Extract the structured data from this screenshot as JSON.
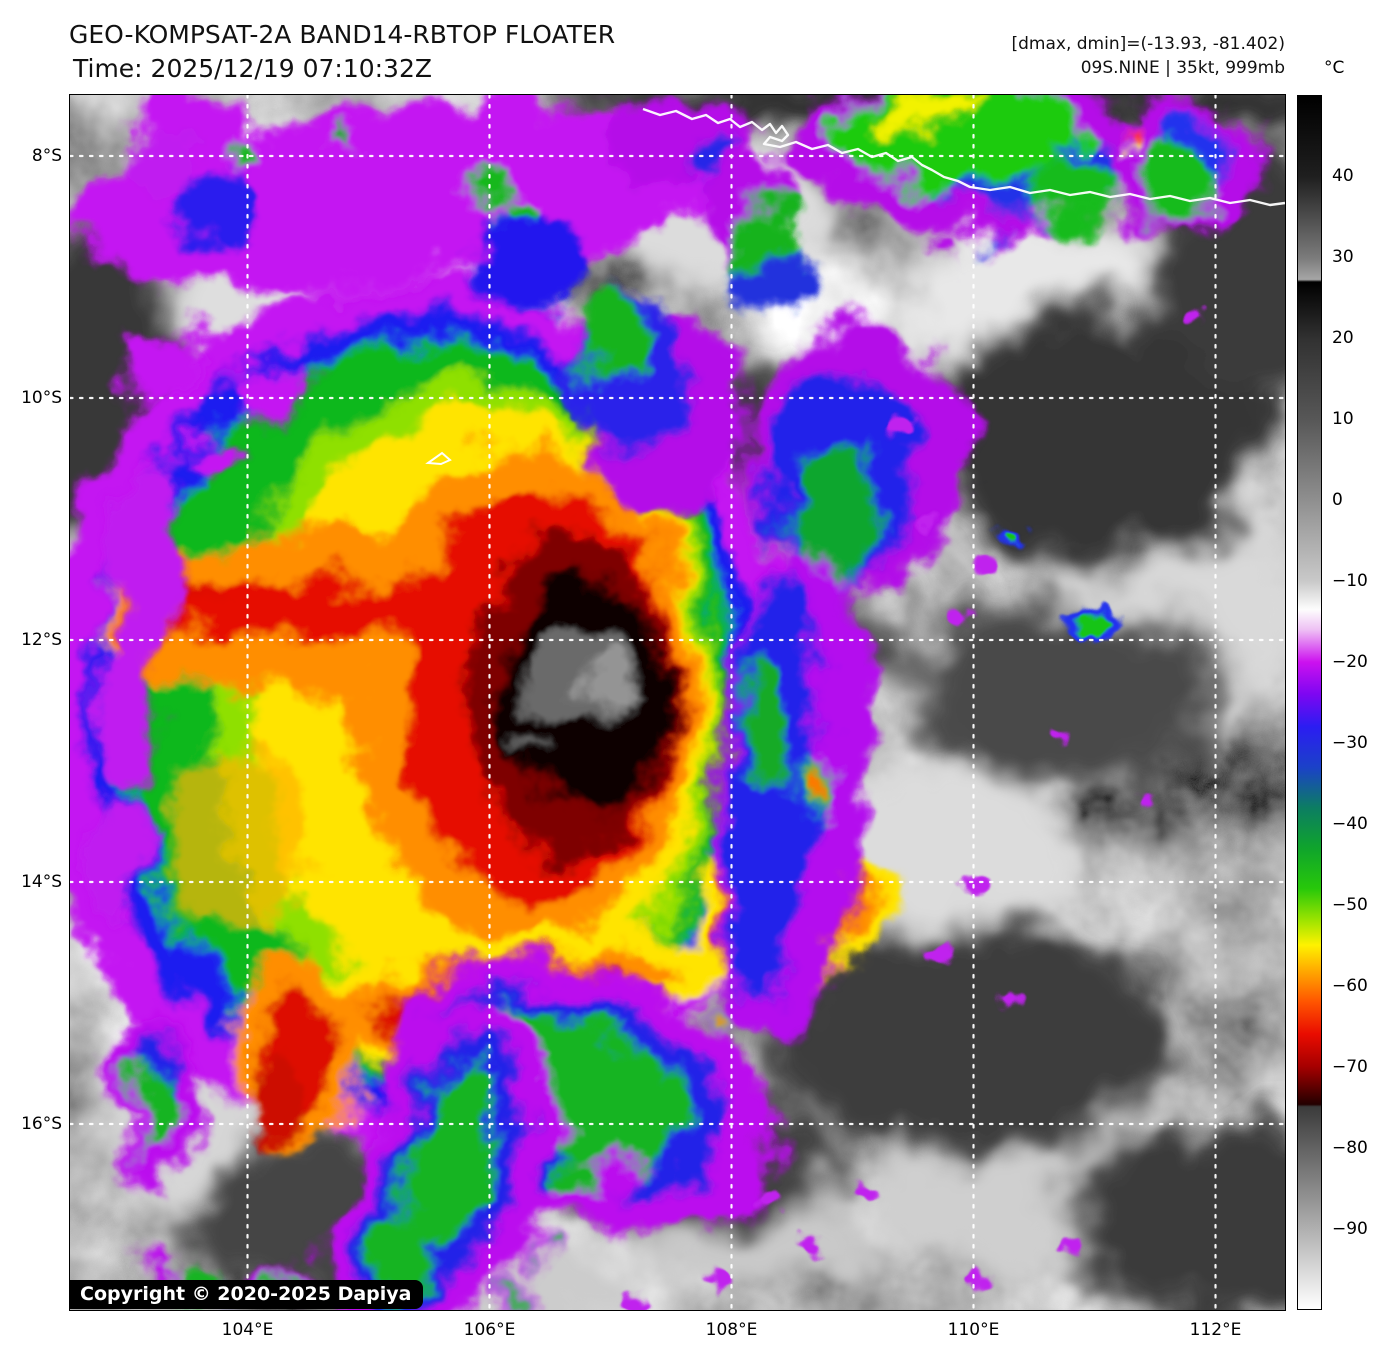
{
  "header": {
    "title": "GEO-KOMPSAT-2A BAND14-RBTOP FLOATER",
    "time": "Time: 2025/12/19 07:10:32Z",
    "annotation1": "[dmax, dmin]=(-13.93, -81.402)",
    "annotation2": "09S.NINE | 35kt, 999mb"
  },
  "map": {
    "lat_ticks": [
      "8°S",
      "10°S",
      "12°S",
      "14°S",
      "16°S"
    ],
    "lon_ticks": [
      "104°E",
      "106°E",
      "108°E",
      "110°E",
      "112°E"
    ],
    "copyright": "Copyright © 2020-2025 Dapiya"
  },
  "colorbar": {
    "unit": "°C",
    "value_max": 50,
    "value_min": -100,
    "ticks": [
      {
        "v": 40,
        "label": "40"
      },
      {
        "v": 30,
        "label": "30"
      },
      {
        "v": 20,
        "label": "20"
      },
      {
        "v": 10,
        "label": "10"
      },
      {
        "v": 0,
        "label": "0"
      },
      {
        "v": -10,
        "label": "−10"
      },
      {
        "v": -20,
        "label": "−20"
      },
      {
        "v": -30,
        "label": "−30"
      },
      {
        "v": -40,
        "label": "−40"
      },
      {
        "v": -50,
        "label": "−50"
      },
      {
        "v": -60,
        "label": "−60"
      },
      {
        "v": -70,
        "label": "−70"
      },
      {
        "v": -80,
        "label": "−80"
      },
      {
        "v": -90,
        "label": "−90"
      }
    ],
    "stops": [
      {
        "v": 50,
        "c": "#000000"
      },
      {
        "v": 40,
        "c": "#1f1f1f"
      },
      {
        "v": 30,
        "c": "#7b7b7b"
      },
      {
        "v": 27.3,
        "c": "#a6a6a6"
      },
      {
        "v": 27,
        "c": "#000000"
      },
      {
        "v": 20,
        "c": "#313131"
      },
      {
        "v": 10,
        "c": "#575757"
      },
      {
        "v": 0,
        "c": "#8f8f8f"
      },
      {
        "v": -10,
        "c": "#c9c9c9"
      },
      {
        "v": -13.5,
        "c": "#fdfdfd"
      },
      {
        "v": -16,
        "c": "#eec0f4"
      },
      {
        "v": -20,
        "c": "#cc11ef"
      },
      {
        "v": -24,
        "c": "#7d06f2"
      },
      {
        "v": -28,
        "c": "#2b1df2"
      },
      {
        "v": -33,
        "c": "#1b41c8"
      },
      {
        "v": -38,
        "c": "#0c7d62"
      },
      {
        "v": -43,
        "c": "#0fa42c"
      },
      {
        "v": -48,
        "c": "#27c80a"
      },
      {
        "v": -52,
        "c": "#9fe400"
      },
      {
        "v": -55,
        "c": "#fef200"
      },
      {
        "v": -58,
        "c": "#ffad00"
      },
      {
        "v": -62,
        "c": "#ff5500"
      },
      {
        "v": -66,
        "c": "#e90c00"
      },
      {
        "v": -70,
        "c": "#a60000"
      },
      {
        "v": -74.7,
        "c": "#230000"
      },
      {
        "v": -75,
        "c": "#3b3b3b"
      },
      {
        "v": -88,
        "c": "#9f9f9f"
      },
      {
        "v": -100,
        "c": "#ffffff"
      }
    ]
  }
}
